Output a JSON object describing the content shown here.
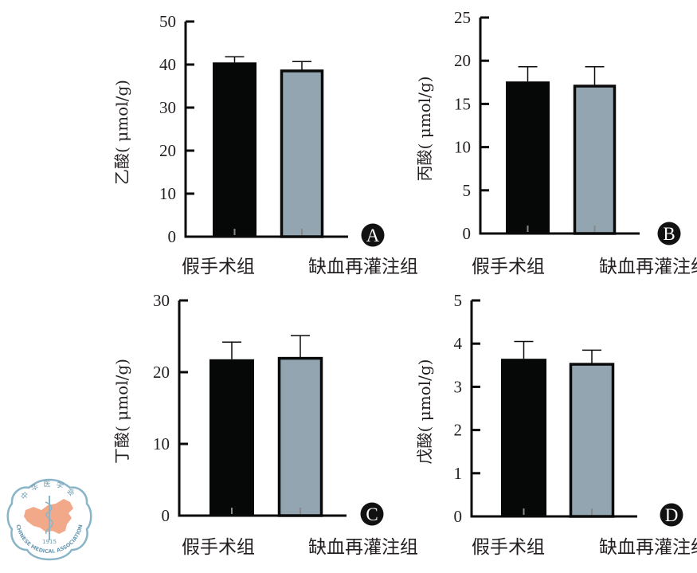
{
  "colors": {
    "sham": "#050807",
    "ir": "#92a5b0",
    "axis": "#0a0a0a",
    "text": "#231f20",
    "logo_ring": "#8ab4c8",
    "logo_map": "#f2a98a"
  },
  "logo": {
    "chinese": "中华医学会",
    "english": "CHINESE MEDICAL ASSOCIATION",
    "year": "1915"
  },
  "chart_data": [
    {
      "type": "bar",
      "panel": "A",
      "ylabel": "乙酸(μmol/g)",
      "ylabel_chem": "乙酸",
      "ylabel_unit": "( μmol/g)",
      "categories": [
        "假手术组",
        "缺血再灌注组"
      ],
      "values": [
        40.5,
        38.8
      ],
      "errors": [
        1.3,
        1.9
      ],
      "ylim": [
        0,
        50
      ],
      "yticks": [
        "0",
        "10",
        "20",
        "30",
        "40",
        "50"
      ],
      "ytick_values": [
        0,
        10,
        20,
        30,
        40,
        50
      ]
    },
    {
      "type": "bar",
      "panel": "B",
      "ylabel": "丙酸(μmol/g)",
      "ylabel_chem": "丙酸",
      "ylabel_unit": "( μmol/g)",
      "categories": [
        "假手术组",
        "缺血再灌注组"
      ],
      "values": [
        17.6,
        17.2
      ],
      "errors": [
        1.7,
        2.1
      ],
      "ylim": [
        0,
        25
      ],
      "yticks": [
        "0",
        "5",
        "10",
        "15",
        "20",
        "25"
      ],
      "ytick_values": [
        0,
        5,
        10,
        15,
        20,
        25
      ]
    },
    {
      "type": "bar",
      "panel": "C",
      "ylabel": "丁酸(μmol/g)",
      "ylabel_chem": "丁酸",
      "ylabel_unit": "( μmol/g)",
      "categories": [
        "假手术组",
        "缺血再灌注组"
      ],
      "values": [
        21.8,
        22.1
      ],
      "errors": [
        2.4,
        3.0
      ],
      "ylim": [
        0,
        30
      ],
      "yticks": [
        "0",
        "10",
        "20",
        "30"
      ],
      "ytick_values": [
        0,
        10,
        20,
        30
      ]
    },
    {
      "type": "bar",
      "panel": "D",
      "ylabel": "戊酸(μmol/g)",
      "ylabel_chem": "戊酸",
      "ylabel_unit": "( μmol/g)",
      "categories": [
        "假手术组",
        "缺血再灌注组"
      ],
      "values": [
        3.65,
        3.55
      ],
      "errors": [
        0.4,
        0.3
      ],
      "ylim": [
        0,
        5
      ],
      "yticks": [
        "0",
        "1",
        "2",
        "3",
        "4",
        "5"
      ],
      "ytick_values": [
        0,
        1,
        2,
        3,
        4,
        5
      ]
    }
  ]
}
